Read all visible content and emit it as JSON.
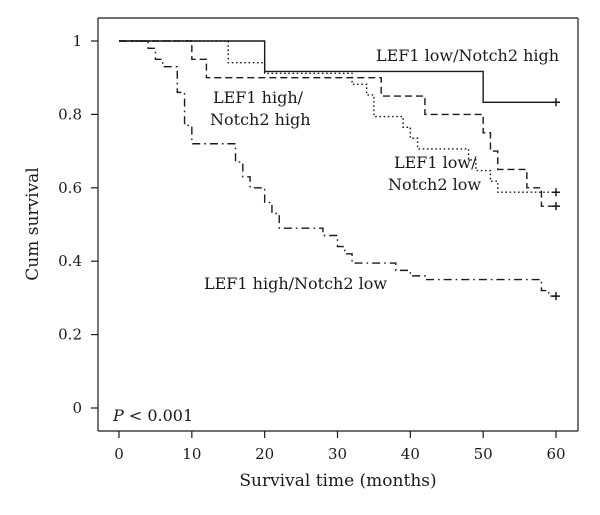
{
  "chart_data": {
    "type": "line",
    "xlabel": "Survival time (months)",
    "ylabel": "Cum survival",
    "xlim": [
      0,
      60
    ],
    "ylim": [
      0,
      1
    ],
    "x_ticks": [
      "0",
      "10",
      "20",
      "30",
      "40",
      "50",
      "60"
    ],
    "y_ticks": [
      "0",
      "0.2",
      "0.4",
      "0.6",
      "0.8",
      "1"
    ],
    "grid": false,
    "p_value": {
      "italic": "P",
      "rest": " < 0.001"
    },
    "annotations": [
      {
        "lines": [
          "LEF1 low/Notch2 high"
        ]
      },
      {
        "lines": [
          "LEF1 high/",
          "Notch2 high"
        ]
      },
      {
        "lines": [
          "LEF1 low/",
          "Notch2 low"
        ]
      },
      {
        "lines": [
          "LEF1 high/Notch2 low"
        ]
      }
    ],
    "series": [
      {
        "line_style": "solid",
        "steps": [
          [
            0,
            1.0
          ],
          [
            20,
            0.917
          ],
          [
            50,
            0.833
          ],
          [
            60,
            0.833
          ]
        ],
        "censored": [
          [
            60,
            0.833
          ]
        ]
      },
      {
        "line_style": "dashed",
        "steps": [
          [
            0,
            1.0
          ],
          [
            10,
            0.95
          ],
          [
            12,
            0.9
          ],
          [
            36,
            0.85
          ],
          [
            42,
            0.8
          ],
          [
            50,
            0.75
          ],
          [
            51,
            0.7
          ],
          [
            52,
            0.65
          ],
          [
            56,
            0.6
          ],
          [
            58,
            0.55
          ],
          [
            60,
            0.55
          ]
        ],
        "censored": [
          [
            60,
            0.55
          ]
        ]
      },
      {
        "line_style": "dotted",
        "steps": [
          [
            0,
            1.0
          ],
          [
            15,
            0.941
          ],
          [
            20,
            0.912
          ],
          [
            32,
            0.882
          ],
          [
            34,
            0.853
          ],
          [
            35,
            0.794
          ],
          [
            39,
            0.765
          ],
          [
            40,
            0.735
          ],
          [
            41,
            0.706
          ],
          [
            48,
            0.676
          ],
          [
            49,
            0.647
          ],
          [
            51,
            0.618
          ],
          [
            52,
            0.588
          ],
          [
            60,
            0.588
          ]
        ],
        "censored": [
          [
            60,
            0.588
          ]
        ]
      },
      {
        "line_style": "dashdot",
        "steps": [
          [
            0,
            1.0
          ],
          [
            4,
            0.98
          ],
          [
            5,
            0.95
          ],
          [
            6,
            0.93
          ],
          [
            8,
            0.86
          ],
          [
            9,
            0.77
          ],
          [
            10,
            0.72
          ],
          [
            16,
            0.67
          ],
          [
            17,
            0.63
          ],
          [
            18,
            0.6
          ],
          [
            20,
            0.56
          ],
          [
            21,
            0.53
          ],
          [
            22,
            0.49
          ],
          [
            28,
            0.47
          ],
          [
            30,
            0.44
          ],
          [
            31,
            0.42
          ],
          [
            32,
            0.395
          ],
          [
            38,
            0.375
          ],
          [
            40,
            0.36
          ],
          [
            42,
            0.35
          ],
          [
            58,
            0.32
          ],
          [
            59,
            0.305
          ],
          [
            60,
            0.305
          ]
        ],
        "censored": [
          [
            60,
            0.305
          ]
        ]
      }
    ]
  }
}
